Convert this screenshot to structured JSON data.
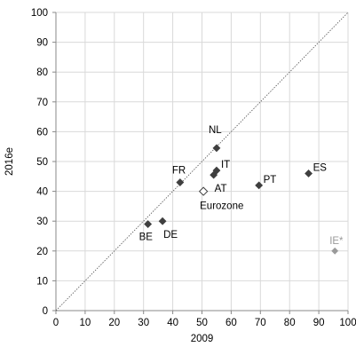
{
  "chart_data": {
    "type": "scatter",
    "title": "",
    "xlabel": "2009",
    "ylabel": "2016e",
    "xlim": [
      0,
      100
    ],
    "ylim": [
      0,
      100
    ],
    "xticks": [
      "0",
      "10",
      "20",
      "30",
      "40",
      "50",
      "60",
      "70",
      "80",
      "90",
      "100"
    ],
    "yticks": [
      "0",
      "10",
      "20",
      "30",
      "40",
      "50",
      "60",
      "70",
      "80",
      "90",
      "100"
    ],
    "grid": true,
    "diagonal": [
      [
        0,
        0
      ],
      [
        100,
        100
      ]
    ],
    "legend": "none",
    "colors": {
      "point": "#3f3f3f",
      "highlight_fill": "#ffffff",
      "muted": "#9a9a9a",
      "grid": "#d9d9d9"
    },
    "points": [
      {
        "label": "NL",
        "x": 55,
        "y": 54.5,
        "style": "filled",
        "label_pos": "top"
      },
      {
        "label": "FR",
        "x": 42.5,
        "y": 43,
        "style": "filled",
        "label_pos": "top"
      },
      {
        "label": "IT",
        "x": 55,
        "y": 47,
        "style": "filled",
        "label_pos": "right-up"
      },
      {
        "label": "AT",
        "x": 54,
        "y": 45.5,
        "style": "filled",
        "label_pos": "below-right"
      },
      {
        "label": "PT",
        "x": 69.5,
        "y": 42,
        "style": "filled",
        "label_pos": "right-up"
      },
      {
        "label": "ES",
        "x": 86.5,
        "y": 46,
        "style": "filled",
        "label_pos": "right-up"
      },
      {
        "label": "Eurozone",
        "x": 50.5,
        "y": 40,
        "style": "open",
        "label_pos": "below"
      },
      {
        "label": "BE",
        "x": 31.5,
        "y": 29,
        "style": "filled",
        "label_pos": "below"
      },
      {
        "label": "DE",
        "x": 36.5,
        "y": 30,
        "style": "filled",
        "label_pos": "below-right"
      },
      {
        "label": "IE*",
        "x": 95.5,
        "y": 20,
        "style": "muted",
        "label_pos": "top"
      }
    ]
  }
}
